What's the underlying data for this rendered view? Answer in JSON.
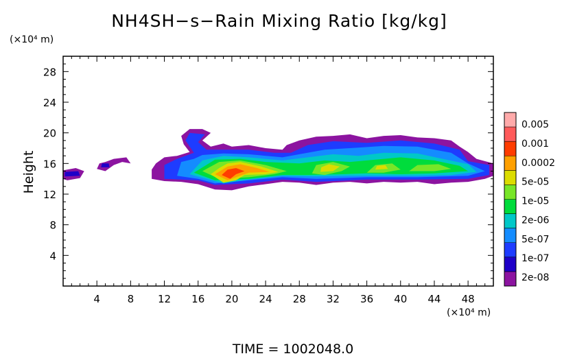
{
  "chart_data": {
    "type": "heatmap",
    "title": "NH4SH−s−Rain Mixing Ratio [kg/kg]",
    "ylabel": "Height",
    "xlabel": "",
    "x_unit": "(×10⁴ m)",
    "y_unit": "(×10⁴ m)",
    "xlim": [
      0,
      51
    ],
    "ylim": [
      0,
      30
    ],
    "x_ticks": [
      4,
      8,
      12,
      16,
      20,
      24,
      28,
      32,
      36,
      40,
      44,
      48
    ],
    "y_ticks": [
      4,
      8,
      12,
      16,
      20,
      24,
      28
    ],
    "time_label": "TIME  =  1002048.0",
    "colorbar": {
      "labels": [
        "0.005",
        "0.001",
        "0.0002",
        "5e-05",
        "1e-05",
        "2e-06",
        "5e-07",
        "1e-07",
        "2e-08"
      ],
      "colors": [
        "#8c14a0",
        "#1e00c8",
        "#1e3cff",
        "#148cff",
        "#00c8c8",
        "#00dc3c",
        "#78e628",
        "#dcdc00",
        "#ffa000",
        "#ff3c00",
        "#ff5a5a",
        "#ffaaaa"
      ]
    },
    "regions": [
      {
        "level": 0,
        "points": [
          [
            0,
            14.0
          ],
          [
            0.5,
            13.8
          ],
          [
            2,
            14.1
          ],
          [
            2.5,
            15.0
          ],
          [
            1.5,
            15.4
          ],
          [
            0,
            15.1
          ]
        ]
      },
      {
        "level": 1,
        "points": [
          [
            0.2,
            14.3
          ],
          [
            2,
            14.4
          ],
          [
            1.8,
            15.0
          ],
          [
            0.2,
            14.9
          ]
        ]
      },
      {
        "level": 0,
        "points": [
          [
            4,
            15.3
          ],
          [
            5,
            15.0
          ],
          [
            6,
            15.8
          ],
          [
            7,
            16.2
          ],
          [
            8,
            16.0
          ],
          [
            7.5,
            16.8
          ],
          [
            6,
            16.6
          ],
          [
            5,
            16.2
          ],
          [
            4.3,
            16.0
          ]
        ]
      },
      {
        "level": 1,
        "points": [
          [
            4.5,
            15.5
          ],
          [
            5.5,
            15.5
          ],
          [
            5.4,
            16.0
          ],
          [
            4.6,
            16.0
          ]
        ]
      },
      {
        "level": 0,
        "points": [
          [
            10.5,
            14.0
          ],
          [
            12,
            13.7
          ],
          [
            14,
            13.6
          ],
          [
            16,
            13.3
          ],
          [
            18,
            12.6
          ],
          [
            20,
            12.5
          ],
          [
            22,
            13.0
          ],
          [
            24,
            13.3
          ],
          [
            26,
            13.6
          ],
          [
            28,
            13.5
          ],
          [
            30,
            13.2
          ],
          [
            32,
            13.5
          ],
          [
            34,
            13.6
          ],
          [
            36,
            13.4
          ],
          [
            38,
            13.6
          ],
          [
            40,
            13.5
          ],
          [
            42,
            13.6
          ],
          [
            44,
            13.3
          ],
          [
            46,
            13.5
          ],
          [
            48,
            13.6
          ],
          [
            50,
            14.0
          ],
          [
            51,
            14.4
          ],
          [
            51,
            16.0
          ],
          [
            49,
            16.6
          ],
          [
            48,
            17.5
          ],
          [
            47,
            18.2
          ],
          [
            46,
            19.0
          ],
          [
            44,
            19.3
          ],
          [
            42,
            19.4
          ],
          [
            40,
            19.7
          ],
          [
            38,
            19.6
          ],
          [
            36,
            19.3
          ],
          [
            34,
            19.8
          ],
          [
            32,
            19.6
          ],
          [
            30,
            19.5
          ],
          [
            28,
            19.0
          ],
          [
            26.5,
            18.4
          ],
          [
            26,
            17.8
          ],
          [
            24,
            18.0
          ],
          [
            22,
            18.4
          ],
          [
            20,
            18.2
          ],
          [
            19,
            18.6
          ],
          [
            17.5,
            18.2
          ],
          [
            16.5,
            19.0
          ],
          [
            17.5,
            20.0
          ],
          [
            16.5,
            20.5
          ],
          [
            15,
            20.5
          ],
          [
            14,
            19.6
          ],
          [
            14.3,
            18.5
          ],
          [
            15,
            17.5
          ],
          [
            13.5,
            17.0
          ],
          [
            12,
            16.8
          ],
          [
            11,
            16.0
          ],
          [
            10.5,
            15.2
          ]
        ]
      },
      {
        "level": 2,
        "points": [
          [
            12,
            14.0
          ],
          [
            16,
            13.8
          ],
          [
            18,
            13.2
          ],
          [
            22,
            13.4
          ],
          [
            26,
            13.9
          ],
          [
            30,
            13.6
          ],
          [
            36,
            13.9
          ],
          [
            42,
            13.9
          ],
          [
            48,
            14.0
          ],
          [
            50.5,
            14.5
          ],
          [
            50.5,
            15.8
          ],
          [
            48,
            16.3
          ],
          [
            47,
            17.8
          ],
          [
            44,
            18.6
          ],
          [
            40,
            19.0
          ],
          [
            36,
            18.7
          ],
          [
            32,
            18.9
          ],
          [
            29,
            18.4
          ],
          [
            27,
            17.4
          ],
          [
            25,
            17.4
          ],
          [
            22,
            17.8
          ],
          [
            19,
            17.8
          ],
          [
            17,
            17.8
          ],
          [
            16,
            18.8
          ],
          [
            16.8,
            19.8
          ],
          [
            15,
            20.0
          ],
          [
            14.5,
            19.0
          ],
          [
            15.5,
            17.4
          ],
          [
            13.5,
            16.6
          ],
          [
            12,
            15.8
          ]
        ]
      },
      {
        "level": 3,
        "points": [
          [
            13.5,
            14.4
          ],
          [
            16,
            14.0
          ],
          [
            18,
            13.4
          ],
          [
            22,
            13.8
          ],
          [
            26,
            14.2
          ],
          [
            30,
            14.0
          ],
          [
            36,
            14.2
          ],
          [
            42,
            14.2
          ],
          [
            48,
            14.4
          ],
          [
            50,
            15.0
          ],
          [
            48,
            16.0
          ],
          [
            46,
            17.4
          ],
          [
            42,
            18.2
          ],
          [
            38,
            18.3
          ],
          [
            34,
            18.0
          ],
          [
            31,
            17.8
          ],
          [
            28,
            17.2
          ],
          [
            26,
            16.8
          ],
          [
            22,
            17.2
          ],
          [
            19,
            17.3
          ],
          [
            16.5,
            17.1
          ],
          [
            15.5,
            16.6
          ],
          [
            14,
            16.2
          ]
        ]
      },
      {
        "level": 4,
        "points": [
          [
            15,
            14.6
          ],
          [
            17,
            14.0
          ],
          [
            19,
            13.4
          ],
          [
            22,
            13.9
          ],
          [
            26,
            14.4
          ],
          [
            30,
            14.3
          ],
          [
            34,
            14.4
          ],
          [
            38,
            14.4
          ],
          [
            42,
            14.4
          ],
          [
            46,
            14.5
          ],
          [
            49,
            14.9
          ],
          [
            48,
            15.9
          ],
          [
            45,
            16.6
          ],
          [
            42,
            17.3
          ],
          [
            38,
            17.4
          ],
          [
            35,
            17.0
          ],
          [
            32,
            17.2
          ],
          [
            29,
            16.8
          ],
          [
            26,
            16.4
          ],
          [
            22,
            16.8
          ],
          [
            19,
            17.0
          ],
          [
            16.5,
            16.4
          ]
        ]
      },
      {
        "level": 5,
        "points": [
          [
            15.5,
            14.8
          ],
          [
            18,
            13.8
          ],
          [
            22,
            14.0
          ],
          [
            26,
            14.5
          ],
          [
            29,
            14.5
          ],
          [
            33,
            14.6
          ],
          [
            36,
            14.7
          ],
          [
            40,
            14.6
          ],
          [
            44,
            14.7
          ],
          [
            48,
            15.0
          ],
          [
            47,
            15.7
          ],
          [
            44,
            16.4
          ],
          [
            40,
            16.8
          ],
          [
            37,
            16.5
          ],
          [
            34,
            16.2
          ],
          [
            31,
            16.4
          ],
          [
            28,
            16.0
          ],
          [
            24,
            16.2
          ],
          [
            21,
            16.6
          ],
          [
            18,
            16.5
          ]
        ]
      },
      {
        "level": 6,
        "points": [
          [
            16.5,
            15.0
          ],
          [
            18.5,
            14.0
          ],
          [
            22,
            14.2
          ],
          [
            25,
            14.6
          ],
          [
            26.5,
            15.0
          ],
          [
            24,
            15.8
          ],
          [
            21,
            16.4
          ],
          [
            18.5,
            16.2
          ]
        ]
      },
      {
        "level": 6,
        "points": [
          [
            29.5,
            14.7
          ],
          [
            31,
            14.5
          ],
          [
            33,
            15.0
          ],
          [
            34,
            15.6
          ],
          [
            32,
            16.2
          ],
          [
            30,
            15.8
          ]
        ]
      },
      {
        "level": 6,
        "points": [
          [
            36,
            14.8
          ],
          [
            38,
            14.8
          ],
          [
            40,
            15.2
          ],
          [
            39,
            16.0
          ],
          [
            37,
            15.8
          ]
        ]
      },
      {
        "level": 6,
        "points": [
          [
            41,
            15.0
          ],
          [
            44,
            15.0
          ],
          [
            46,
            15.3
          ],
          [
            44.5,
            15.9
          ],
          [
            42,
            15.8
          ]
        ]
      },
      {
        "level": 7,
        "points": [
          [
            17.5,
            14.6
          ],
          [
            19,
            13.5
          ],
          [
            20.5,
            13.8
          ],
          [
            21.5,
            14.5
          ],
          [
            24,
            14.6
          ],
          [
            25.5,
            14.9
          ],
          [
            23.5,
            15.6
          ],
          [
            21,
            16.2
          ],
          [
            19.5,
            16.0
          ],
          [
            18.5,
            15.4
          ]
        ]
      },
      {
        "level": 7,
        "points": [
          [
            30.5,
            14.9
          ],
          [
            32,
            15.0
          ],
          [
            32.8,
            15.6
          ],
          [
            31.5,
            15.9
          ],
          [
            30.6,
            15.5
          ]
        ]
      },
      {
        "level": 7,
        "points": [
          [
            37,
            15.2
          ],
          [
            38.5,
            15.3
          ],
          [
            38.2,
            15.8
          ],
          [
            37.2,
            15.7
          ]
        ]
      },
      {
        "level": 8,
        "points": [
          [
            18,
            14.6
          ],
          [
            19.5,
            13.8
          ],
          [
            20.5,
            14.2
          ],
          [
            22,
            14.8
          ],
          [
            24.5,
            14.9
          ],
          [
            23,
            15.4
          ],
          [
            21,
            15.9
          ],
          [
            19.5,
            15.6
          ]
        ]
      },
      {
        "level": 9,
        "points": [
          [
            18.8,
            14.5
          ],
          [
            19.8,
            14.0
          ],
          [
            20.5,
            14.6
          ],
          [
            21.5,
            15.0
          ],
          [
            20.5,
            15.4
          ],
          [
            19.5,
            15.2
          ]
        ]
      }
    ]
  }
}
